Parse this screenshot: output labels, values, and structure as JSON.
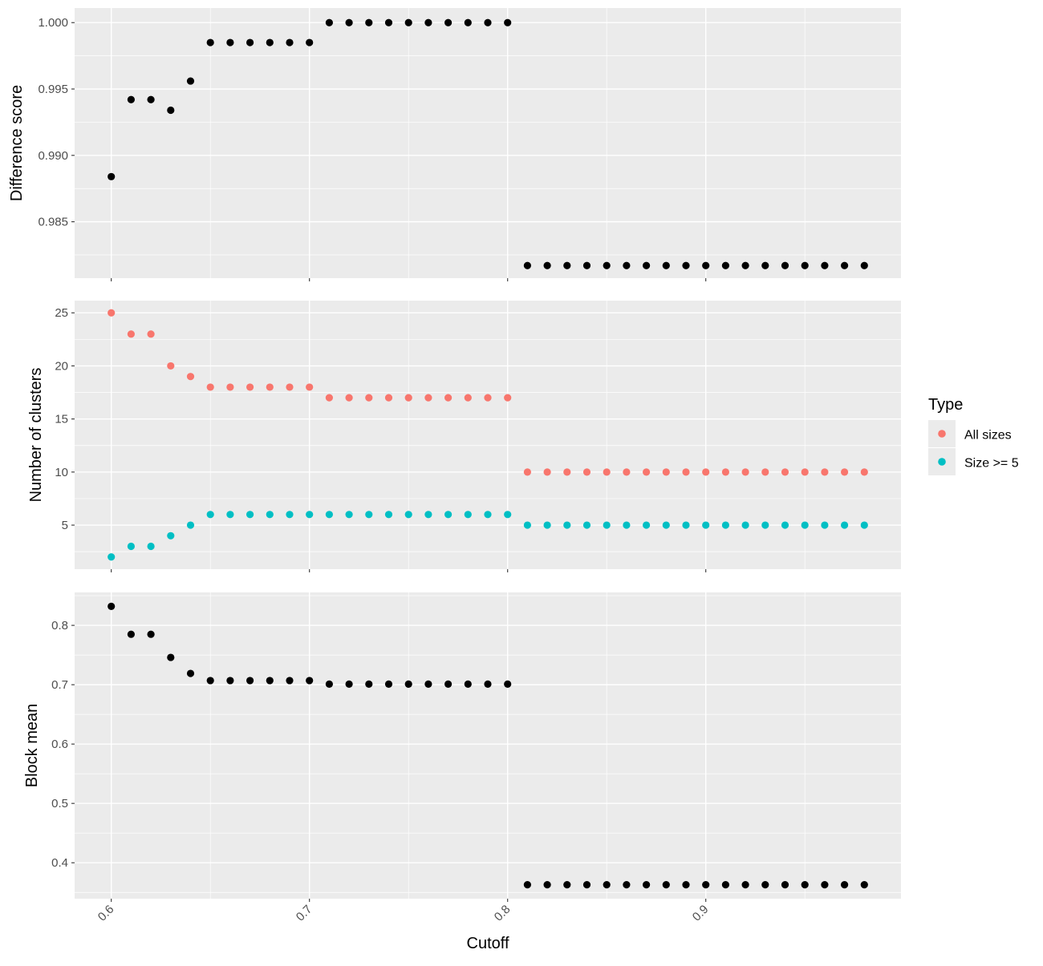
{
  "chart_data": {
    "type": "scatter",
    "x_label": "Cutoff",
    "x_ticks": [
      0.6,
      0.7,
      0.8,
      0.9
    ],
    "x_ticklabels": [
      "0.6",
      "0.7",
      "0.8",
      "0.9"
    ],
    "xlim": [
      0.5815,
      0.9985
    ],
    "legend": {
      "title": "Type",
      "placement": "right",
      "entries": [
        {
          "label": "All sizes",
          "color": "#F8766D"
        },
        {
          "label": "Size >= 5",
          "color": "#00BFC4"
        }
      ]
    },
    "panels": [
      {
        "id": "difference",
        "ylabel": "Difference score",
        "ylim": [
          0.98075,
          1.0011
        ],
        "y_ticks": [
          0.985,
          0.99,
          0.995,
          1.0
        ],
        "y_ticklabels": [
          "0.985",
          "0.990",
          "0.995",
          "1.000"
        ],
        "series": [
          {
            "color": "#000000",
            "x": [
              0.6,
              0.61,
              0.62,
              0.63,
              0.64,
              0.65,
              0.66,
              0.67,
              0.68,
              0.69,
              0.7,
              0.71,
              0.72,
              0.73,
              0.74,
              0.75,
              0.76,
              0.77,
              0.78,
              0.79,
              0.8,
              0.81,
              0.82,
              0.83,
              0.84,
              0.85,
              0.86,
              0.87,
              0.88,
              0.89,
              0.9,
              0.91,
              0.92,
              0.93,
              0.94,
              0.95,
              0.96,
              0.97,
              0.98
            ],
            "y": [
              0.9884,
              0.9942,
              0.9942,
              0.9934,
              0.9956,
              0.9985,
              0.9985,
              0.9985,
              0.9985,
              0.9985,
              0.9985,
              1.0,
              1.0,
              1.0,
              1.0,
              1.0,
              1.0,
              1.0,
              1.0,
              1.0,
              1.0,
              0.9817,
              0.9817,
              0.9817,
              0.9817,
              0.9817,
              0.9817,
              0.9817,
              0.9817,
              0.9817,
              0.9817,
              0.9817,
              0.9817,
              0.9817,
              0.9817,
              0.9817,
              0.9817,
              0.9817,
              0.9817
            ]
          }
        ]
      },
      {
        "id": "clusters",
        "ylabel": "Number of clusters",
        "ylim": [
          0.85,
          26.15
        ],
        "y_ticks": [
          5,
          10,
          15,
          20,
          25
        ],
        "y_ticklabels": [
          "5",
          "10",
          "15",
          "20",
          "25"
        ],
        "series": [
          {
            "name": "All sizes",
            "color": "#F8766D",
            "x": [
              0.6,
              0.61,
              0.62,
              0.63,
              0.64,
              0.65,
              0.66,
              0.67,
              0.68,
              0.69,
              0.7,
              0.71,
              0.72,
              0.73,
              0.74,
              0.75,
              0.76,
              0.77,
              0.78,
              0.79,
              0.8,
              0.81,
              0.82,
              0.83,
              0.84,
              0.85,
              0.86,
              0.87,
              0.88,
              0.89,
              0.9,
              0.91,
              0.92,
              0.93,
              0.94,
              0.95,
              0.96,
              0.97,
              0.98
            ],
            "y": [
              25,
              23,
              23,
              20,
              19,
              18,
              18,
              18,
              18,
              18,
              18,
              17,
              17,
              17,
              17,
              17,
              17,
              17,
              17,
              17,
              17,
              10,
              10,
              10,
              10,
              10,
              10,
              10,
              10,
              10,
              10,
              10,
              10,
              10,
              10,
              10,
              10,
              10,
              10
            ]
          },
          {
            "name": "Size >= 5",
            "color": "#00BFC4",
            "x": [
              0.6,
              0.61,
              0.62,
              0.63,
              0.64,
              0.65,
              0.66,
              0.67,
              0.68,
              0.69,
              0.7,
              0.71,
              0.72,
              0.73,
              0.74,
              0.75,
              0.76,
              0.77,
              0.78,
              0.79,
              0.8,
              0.81,
              0.82,
              0.83,
              0.84,
              0.85,
              0.86,
              0.87,
              0.88,
              0.89,
              0.9,
              0.91,
              0.92,
              0.93,
              0.94,
              0.95,
              0.96,
              0.97,
              0.98
            ],
            "y": [
              2,
              3,
              3,
              4,
              5,
              6,
              6,
              6,
              6,
              6,
              6,
              6,
              6,
              6,
              6,
              6,
              6,
              6,
              6,
              6,
              6,
              5,
              5,
              5,
              5,
              5,
              5,
              5,
              5,
              5,
              5,
              5,
              5,
              5,
              5,
              5,
              5,
              5,
              5
            ]
          }
        ]
      },
      {
        "id": "blockmean",
        "ylabel": "Block mean",
        "ylim": [
          0.3395,
          0.8555
        ],
        "y_ticks": [
          0.4,
          0.5,
          0.6,
          0.7,
          0.8
        ],
        "y_ticklabels": [
          "0.4",
          "0.5",
          "0.6",
          "0.7",
          "0.8"
        ],
        "series": [
          {
            "color": "#000000",
            "x": [
              0.6,
              0.61,
              0.62,
              0.63,
              0.64,
              0.65,
              0.66,
              0.67,
              0.68,
              0.69,
              0.7,
              0.71,
              0.72,
              0.73,
              0.74,
              0.75,
              0.76,
              0.77,
              0.78,
              0.79,
              0.8,
              0.81,
              0.82,
              0.83,
              0.84,
              0.85,
              0.86,
              0.87,
              0.88,
              0.89,
              0.9,
              0.91,
              0.92,
              0.93,
              0.94,
              0.95,
              0.96,
              0.97,
              0.98
            ],
            "y": [
              0.832,
              0.785,
              0.785,
              0.746,
              0.719,
              0.707,
              0.707,
              0.707,
              0.707,
              0.707,
              0.707,
              0.701,
              0.701,
              0.701,
              0.701,
              0.701,
              0.701,
              0.701,
              0.701,
              0.701,
              0.701,
              0.363,
              0.363,
              0.363,
              0.363,
              0.363,
              0.363,
              0.363,
              0.363,
              0.363,
              0.363,
              0.363,
              0.363,
              0.363,
              0.363,
              0.363,
              0.363,
              0.363,
              0.363
            ]
          }
        ]
      }
    ]
  }
}
